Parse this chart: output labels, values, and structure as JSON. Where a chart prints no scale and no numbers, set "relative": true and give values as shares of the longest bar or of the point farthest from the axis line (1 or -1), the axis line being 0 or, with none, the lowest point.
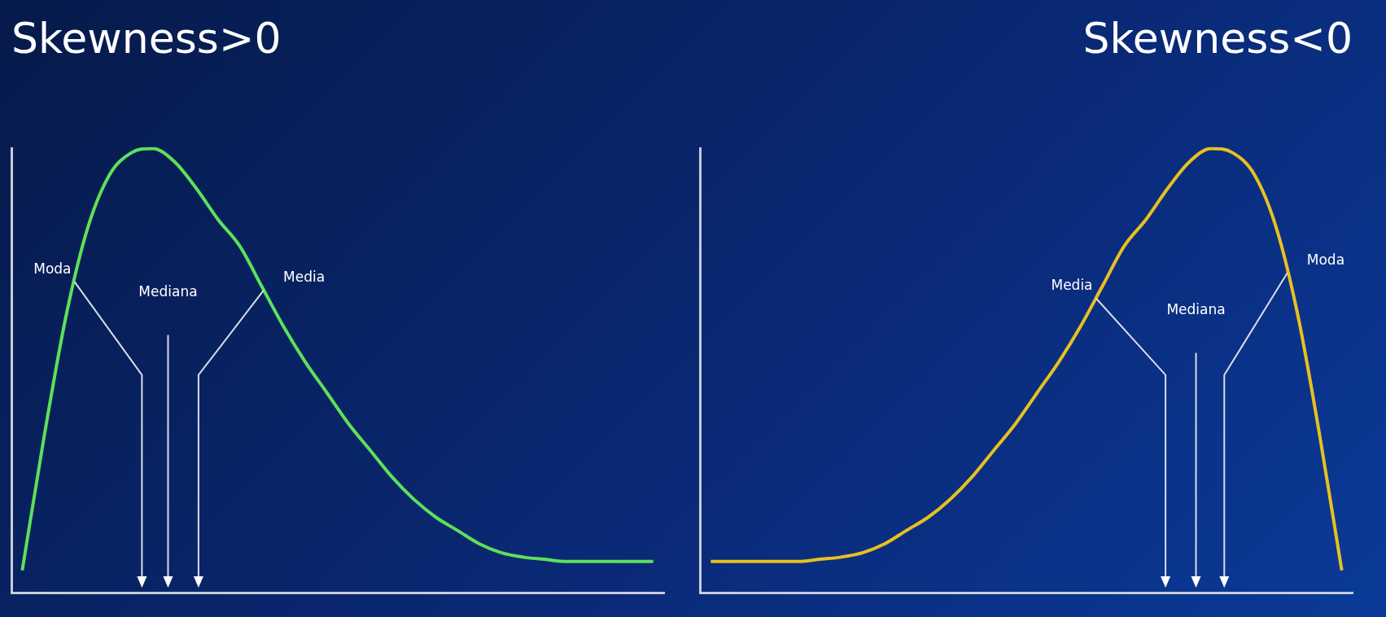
{
  "chart_data": [
    {
      "type": "line",
      "title": "Skewness>0",
      "relative": true,
      "legend": false,
      "tick_labels": false,
      "marker": "none",
      "categories": [
        null,
        null,
        null,
        null,
        null,
        null,
        null,
        null,
        null,
        null,
        null,
        null,
        null,
        null,
        null,
        null,
        null,
        null,
        null,
        null,
        null,
        null,
        null,
        null,
        null,
        null,
        null,
        null,
        null,
        null
      ],
      "series": [
        {
          "color": "#5ee05a",
          "values": [
            0.05,
            0.35,
            0.62,
            0.82,
            0.94,
            0.99,
            1.0,
            0.97,
            0.91,
            0.84,
            0.78,
            0.69,
            0.6,
            0.52,
            0.45,
            0.38,
            0.32,
            0.26,
            0.21,
            0.17,
            0.14,
            0.11,
            0.09,
            0.08,
            0.075,
            0.07,
            0.07,
            0.07,
            0.07,
            0.07
          ]
        }
      ],
      "annotations": [
        "Moda",
        "Mediana",
        "Media"
      ]
    },
    {
      "type": "line",
      "title": "Skewness<0",
      "relative": true,
      "legend": false,
      "tick_labels": false,
      "marker": "none",
      "categories": [
        null,
        null,
        null,
        null,
        null,
        null,
        null,
        null,
        null,
        null,
        null,
        null,
        null,
        null,
        null,
        null,
        null,
        null,
        null,
        null,
        null,
        null,
        null,
        null,
        null,
        null,
        null,
        null,
        null,
        null
      ],
      "series": [
        {
          "color": "#e8c020",
          "values": [
            0.07,
            0.07,
            0.07,
            0.07,
            0.07,
            0.075,
            0.08,
            0.09,
            0.11,
            0.14,
            0.17,
            0.21,
            0.26,
            0.32,
            0.38,
            0.45,
            0.52,
            0.6,
            0.69,
            0.78,
            0.84,
            0.91,
            0.97,
            1.0,
            0.99,
            0.94,
            0.82,
            0.62,
            0.35,
            0.05
          ]
        }
      ],
      "annotations": [
        "Media",
        "Mediana",
        "Moda"
      ]
    }
  ]
}
